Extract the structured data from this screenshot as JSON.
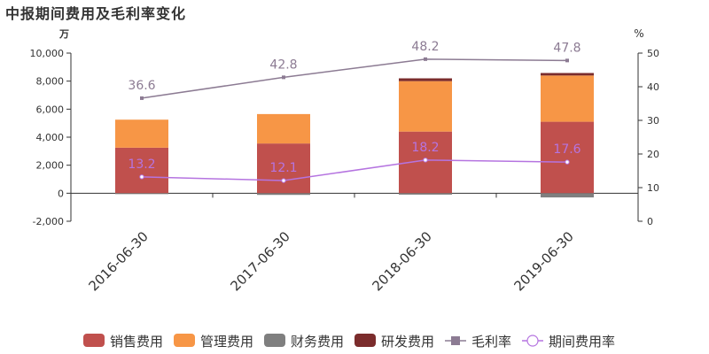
{
  "chart_data": {
    "type": "bar",
    "title": "中报期间费用及毛利率变化",
    "categories": [
      "2016-06-30",
      "2017-06-30",
      "2018-06-30",
      "2019-06-30"
    ],
    "y_left": {
      "unit": "万",
      "range": [
        -2000,
        10000
      ],
      "ticks": [
        -2000,
        0,
        2000,
        4000,
        6000,
        8000,
        10000
      ],
      "tick_labels": [
        "-2,000",
        "0",
        "2,000",
        "4,000",
        "6,000",
        "8,000",
        "10,000"
      ]
    },
    "y_right": {
      "unit": "%",
      "range": [
        0,
        50
      ],
      "ticks": [
        0,
        10,
        20,
        30,
        40,
        50
      ],
      "tick_labels": [
        "0",
        "10",
        "20",
        "30",
        "40",
        "50"
      ]
    },
    "series": [
      {
        "name": "销售费用",
        "kind": "bar",
        "axis": "left",
        "color": "#c0504d",
        "values": [
          3250,
          3550,
          4400,
          5100
        ]
      },
      {
        "name": "管理费用",
        "kind": "bar",
        "axis": "left",
        "color": "#f79646",
        "values": [
          2000,
          2100,
          3600,
          3300
        ]
      },
      {
        "name": "财务费用",
        "kind": "bar",
        "axis": "left",
        "color": "#7f7f7f",
        "values": [
          -30,
          -120,
          -100,
          -300
        ]
      },
      {
        "name": "研发费用",
        "kind": "bar",
        "axis": "left",
        "color": "#7b2c2c",
        "values": [
          0,
          0,
          200,
          180
        ]
      },
      {
        "name": "毛利率",
        "kind": "line",
        "axis": "right",
        "color": "#8c7b93",
        "marker": "square",
        "values": [
          36.6,
          42.8,
          48.2,
          47.8
        ],
        "labels": [
          "36.6",
          "42.8",
          "48.2",
          "47.8"
        ]
      },
      {
        "name": "期间费用率",
        "kind": "line",
        "axis": "right",
        "color": "#b574e0",
        "marker": "circle",
        "values": [
          13.2,
          12.1,
          18.2,
          17.6
        ],
        "labels": [
          "13.2",
          "12.1",
          "18.2",
          "17.6"
        ]
      }
    ],
    "legend": "bottom",
    "grid": false
  }
}
